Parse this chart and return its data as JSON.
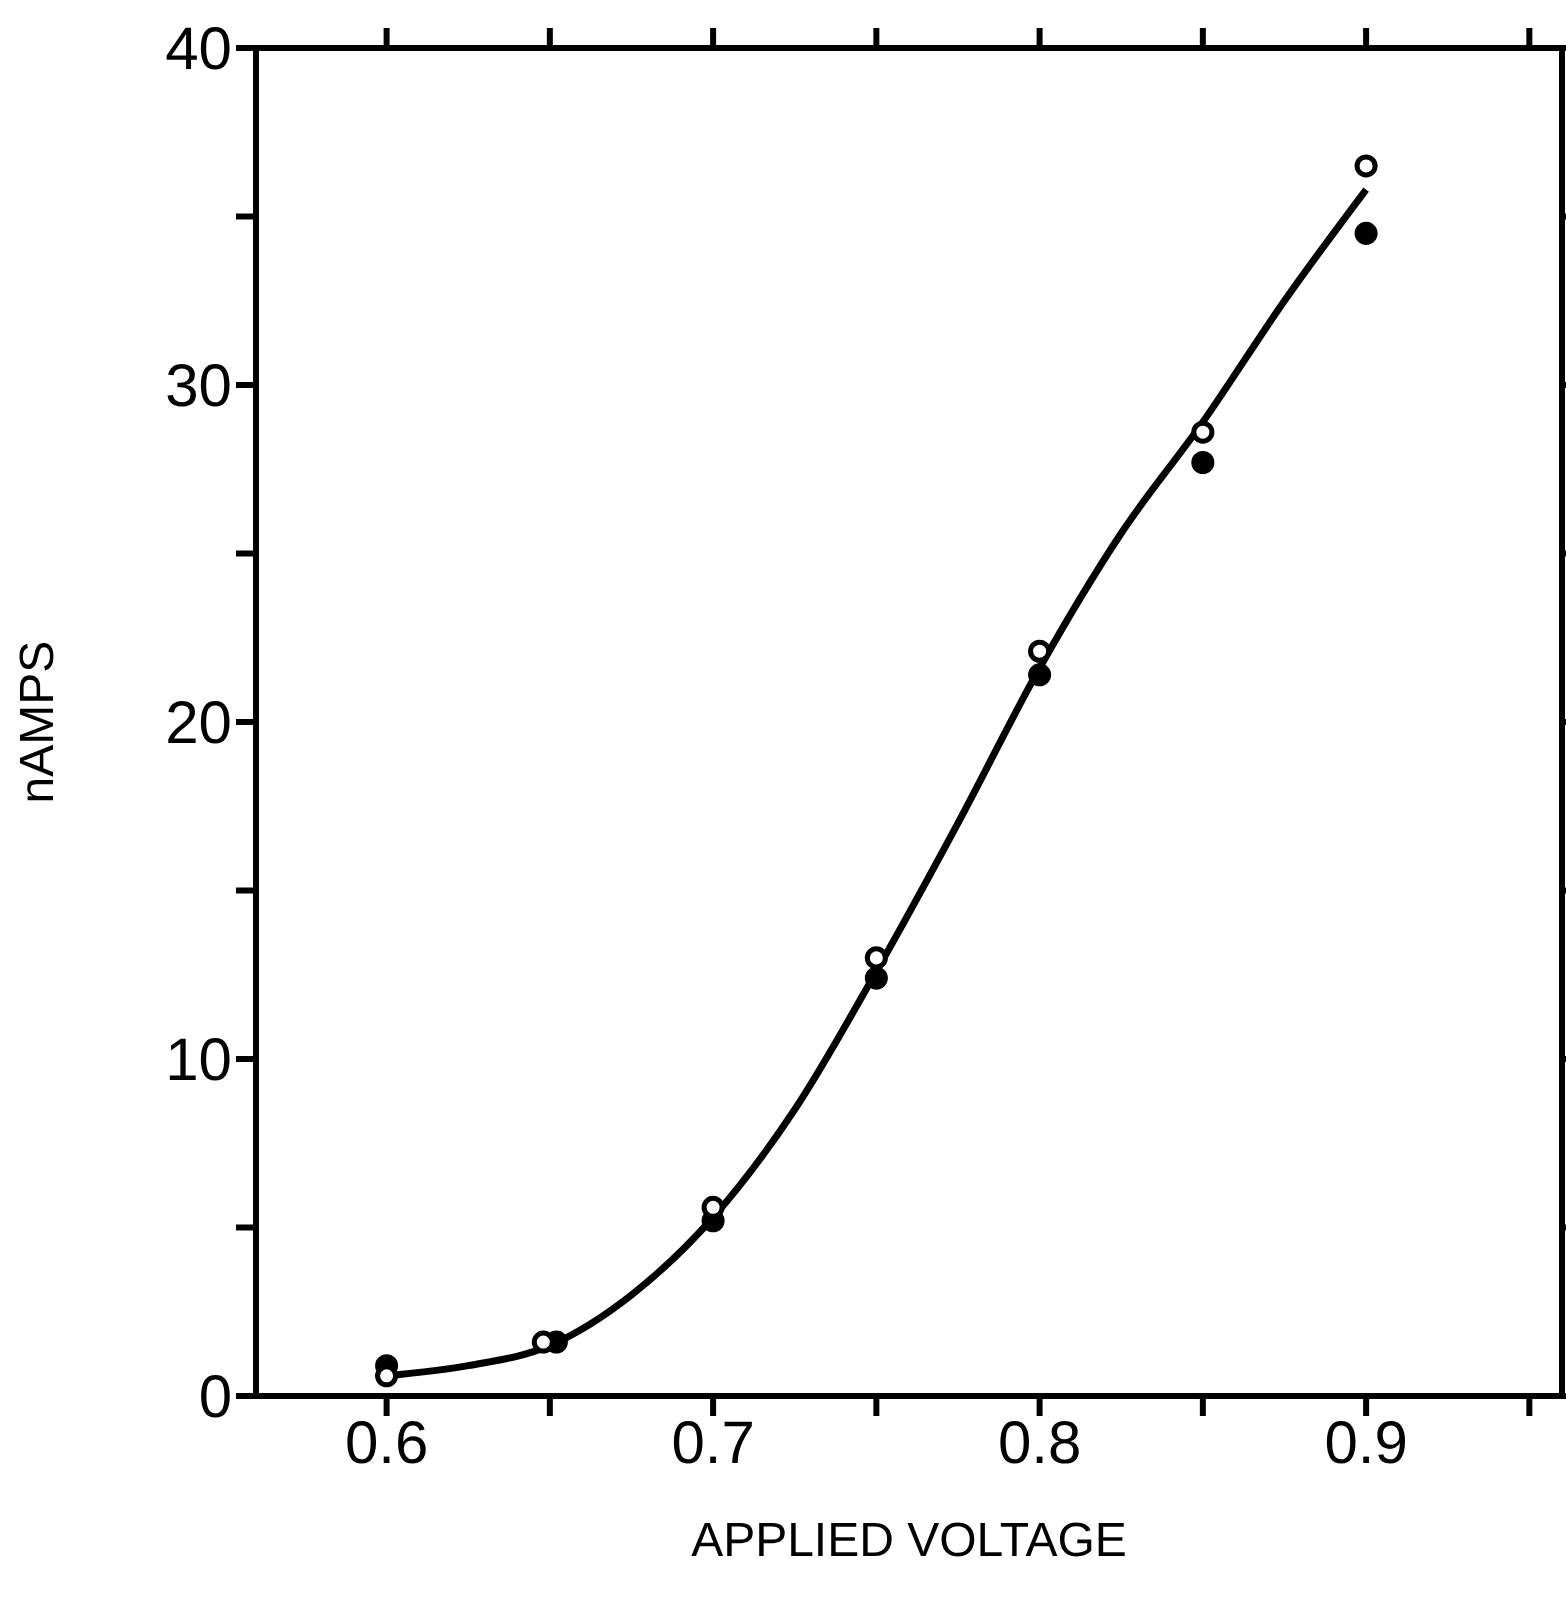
{
  "chart_data": {
    "type": "scatter",
    "xlabel": "APPLIED VOLTAGE",
    "ylabel": "nAMPS",
    "xlim": [
      0.56,
      0.96
    ],
    "ylim": [
      0,
      40
    ],
    "xticks": [
      0.6,
      {
        "value": 0.65,
        "label": null
      },
      0.7,
      {
        "value": 0.75,
        "label": null
      },
      0.8,
      {
        "value": 0.85,
        "label": null
      },
      0.9,
      {
        "value": 0.95,
        "label": null
      }
    ],
    "yticks": [
      0,
      {
        "value": 5,
        "label": null
      },
      10,
      {
        "value": 15,
        "label": null
      },
      20,
      {
        "value": 25,
        "label": null
      },
      30,
      {
        "value": 35,
        "label": null
      },
      40
    ],
    "series": [
      {
        "type": "line",
        "color": "#000000",
        "x": [
          0.6,
          0.625,
          0.65,
          0.675,
          0.7,
          0.725,
          0.75,
          0.775,
          0.8,
          0.825,
          0.85,
          0.875,
          0.9
        ],
        "values": [
          0.6,
          0.9,
          1.5,
          3,
          5.3,
          8.5,
          12.6,
          17,
          21.6,
          25.6,
          28.9,
          32.5,
          35.8
        ]
      },
      {
        "marker": "circle",
        "color": "#000000",
        "x": [
          0.6,
          0.652,
          0.7,
          0.75,
          0.8,
          0.85,
          0.9
        ],
        "values": [
          0.9,
          1.6,
          5.2,
          12.4,
          21.4,
          27.7,
          34.5
        ]
      },
      {
        "marker": "circle",
        "color": "#ffffff",
        "x": [
          0.6,
          0.648,
          0.7,
          0.75,
          0.8,
          0.85,
          0.9
        ],
        "values": [
          0.6,
          1.6,
          5.6,
          13.0,
          22.1,
          28.6,
          36.5
        ]
      }
    ]
  }
}
